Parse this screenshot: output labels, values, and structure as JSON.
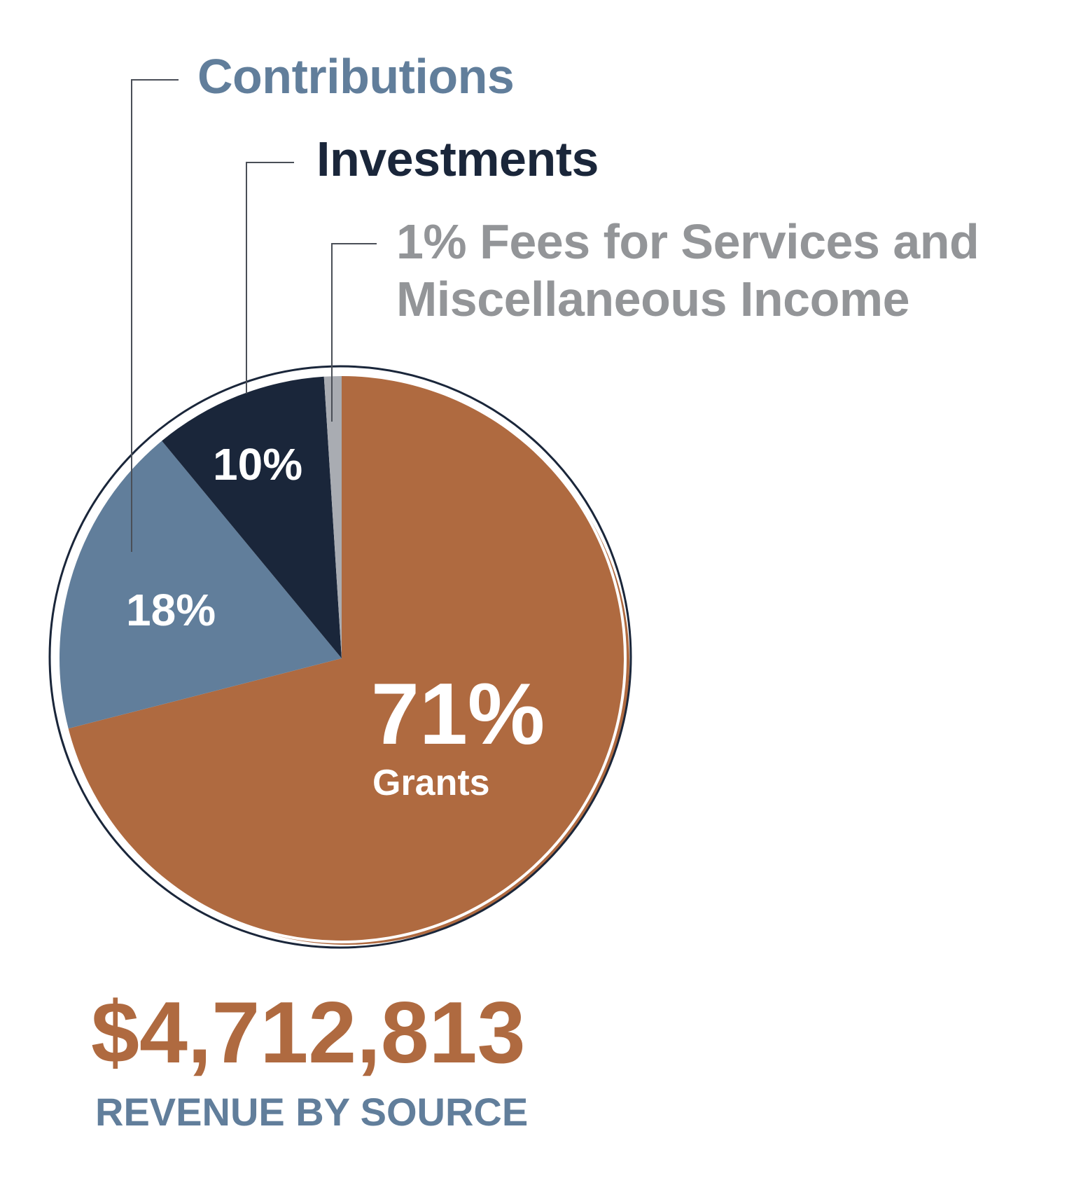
{
  "colors": {
    "grants": "#AF6A40",
    "contributions": "#617E9B",
    "investments": "#1A263A",
    "fees": "#A9ACB2",
    "fees_label": "#939598",
    "outline": "#1A263A",
    "leader": "#4A4F57",
    "caption": "#617E9B"
  },
  "chart_data": {
    "type": "pie",
    "slices": [
      {
        "key": "grants",
        "name": "Grants",
        "value": 71,
        "label": "71%"
      },
      {
        "key": "contributions",
        "name": "Contributions",
        "value": 18,
        "label": "18%"
      },
      {
        "key": "investments",
        "name": "Investments",
        "value": 10,
        "label": "10%"
      },
      {
        "key": "fees",
        "name": "Fees for Services and Miscellaneous Income",
        "value": 1,
        "label": "1%"
      }
    ]
  },
  "legend": {
    "contributions": "Contributions",
    "investments": "Investments",
    "fees_line1": "1% Fees for Services and",
    "fees_line2": "Miscellaneous Income"
  },
  "slice_labels": {
    "investments_pct": "10%",
    "contributions_pct": "18%",
    "grants_pct": "71%",
    "grants_name": "Grants"
  },
  "total": {
    "amount": "$4,712,813",
    "caption": "REVENUE BY SOURCE"
  }
}
